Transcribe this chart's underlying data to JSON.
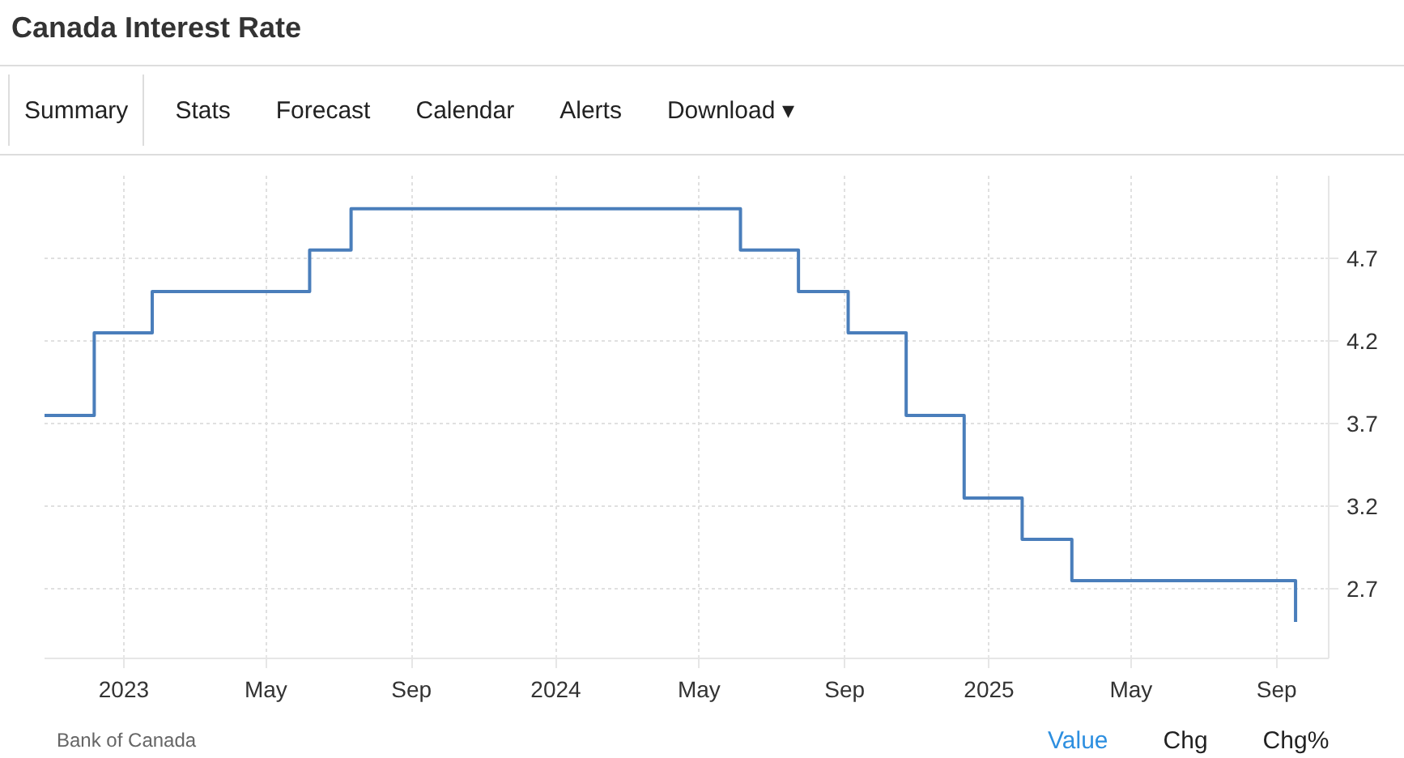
{
  "chart_data": {
    "type": "step",
    "title": "Canada Interest Rate",
    "annotations": [
      "Summary",
      "Stats",
      "Forecast",
      "Calendar",
      "Alerts",
      "Download ▾",
      "Bank of Canada",
      "Value",
      "Chg",
      "Chg%"
    ],
    "x": [
      "2022-10-26",
      "2022-12-07",
      "2023-01-25",
      "2023-06-07",
      "2023-07-12",
      "2024-06-05",
      "2024-07-24",
      "2024-09-04",
      "2024-10-23",
      "2024-12-11",
      "2025-01-29",
      "2025-03-12",
      "2025-09-17"
    ],
    "series": [
      {
        "color": "#4a7ebb",
        "values": [
          3.75,
          4.25,
          4.5,
          4.75,
          5.0,
          4.75,
          4.5,
          4.25,
          3.75,
          3.25,
          3.0,
          2.75,
          2.5
        ]
      }
    ],
    "xlim": [
      "2022-10-26",
      "2025-10-15"
    ],
    "xticks": [
      {
        "value": "2023-01-01",
        "label": "2023"
      },
      {
        "value": "2023-05-01",
        "label": "May"
      },
      {
        "value": "2023-09-01",
        "label": "Sep"
      },
      {
        "value": "2024-01-01",
        "label": "2024"
      },
      {
        "value": "2024-05-01",
        "label": "May"
      },
      {
        "value": "2024-09-01",
        "label": "Sep"
      },
      {
        "value": "2025-01-01",
        "label": "2025"
      },
      {
        "value": "2025-05-01",
        "label": "May"
      },
      {
        "value": "2025-09-01",
        "label": "Sep"
      }
    ],
    "ylim": [
      2.28,
      5.2
    ],
    "yticks": [
      2.7,
      3.2,
      3.7,
      4.2,
      4.7
    ],
    "grid": true,
    "line_style": "solid"
  }
}
